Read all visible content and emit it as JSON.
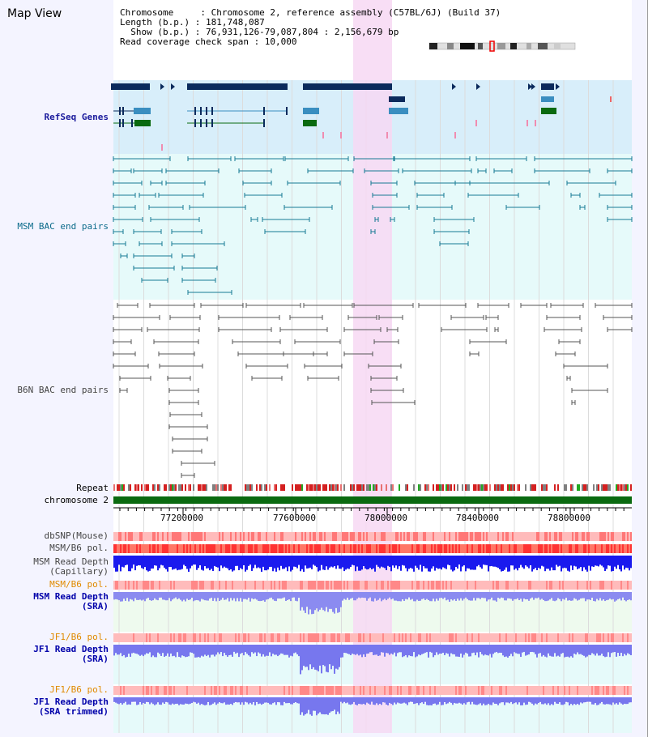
{
  "title": "Map View",
  "info": {
    "chromosome_line": "Chromosome     : Chromosome 2, reference assembly (C57BL/6J) (Build 37)",
    "length_line": "Length (b.p.) : 181,748,087",
    "show_line": "  Show (b.p.) : 76,931,126-79,087,804 : 2,156,679 bp",
    "coverage_line": "Read coverage check span : 10,000"
  },
  "tracks": {
    "refseq": "RefSeq Genes",
    "msm_bac": "MSM BAC end pairs",
    "b6n_bac": "B6N BAC end pairs",
    "repeat": "Repeat",
    "chromosome": "chromosome 2",
    "dbsnp": "dbSNP(Mouse)",
    "msm_b6_pol_1": "MSM/B6 pol.",
    "msm_depth_cap": "MSM Read Depth\n(Capillary)",
    "msm_b6_pol_2": "MSM/B6 pol.",
    "msm_depth_sra": "MSM Read Depth\n(SRA)",
    "jf1_b6_pol_1": "JF1/B6 pol.",
    "jf1_depth_sra": "JF1 Read Depth\n(SRA)",
    "jf1_b6_pol_2": "JF1/B6 pol.",
    "jf1_depth_trim": "JF1 Read Depth\n(SRA trimmed)"
  },
  "axis": {
    "ticks": [
      "77200000",
      "77600000",
      "78000000",
      "78400000",
      "78800000"
    ]
  },
  "colors": {
    "refseq_bg": "#d8eefa",
    "msm_bg": "#e6fafa",
    "highlight": "#f7d8f3",
    "refseq_label": "#1a1a9c",
    "msm_label": "#0a6a8a",
    "b6n_label": "#444444",
    "depth_label": "#0000aa",
    "pol_label": "#e08a00",
    "gene_dark": "#0b2a5c",
    "gene_mid": "#3a8ec0",
    "gene_green": "#0a6a10"
  }
}
